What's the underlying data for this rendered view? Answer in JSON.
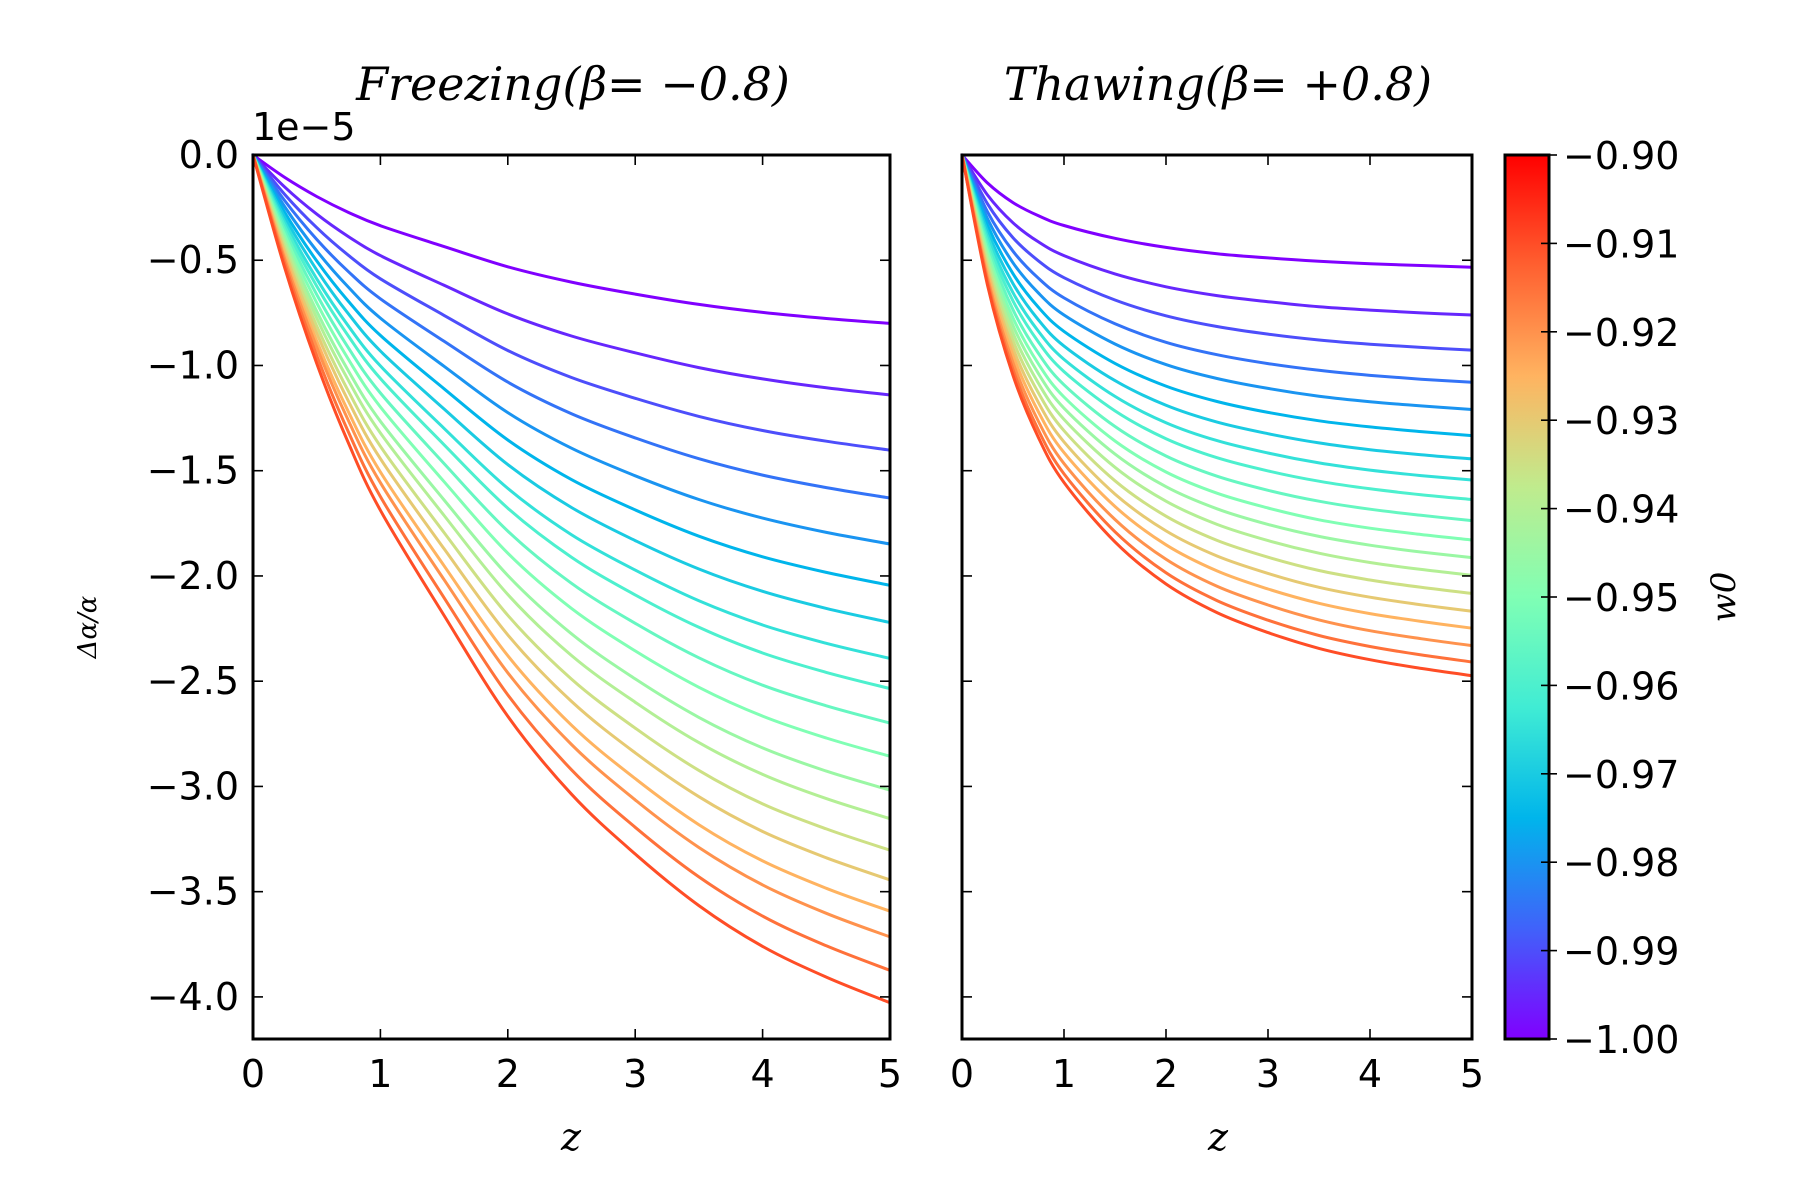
{
  "chart_data": [
    {
      "type": "line",
      "panel": "left",
      "title": "Freezing(β= −0.8)",
      "xlabel": "z",
      "ylabel": "Δα/α",
      "y_offset_text": "1e−5",
      "xlim": [
        0,
        5
      ],
      "ylim": [
        -4.2,
        0.0
      ],
      "xticks": [
        "0",
        "1",
        "2",
        "3",
        "4",
        "5"
      ],
      "yticks": [
        "0.0",
        "−0.5",
        "−1.0",
        "−1.5",
        "−2.0",
        "−2.5",
        "−3.0",
        "−3.5",
        "−4.0"
      ],
      "ytick_values": [
        0,
        -0.5,
        -1.0,
        -1.5,
        -2.0,
        -2.5,
        -3.0,
        -3.5,
        -4.0
      ],
      "x": [
        0,
        0.25,
        0.5,
        0.75,
        1.0,
        1.5,
        2.0,
        2.5,
        3.0,
        3.5,
        4.0,
        4.5,
        5.0
      ],
      "series": [
        {
          "w0": -1.0,
          "values": [
            0,
            -0.107,
            -0.197,
            -0.273,
            -0.336,
            -0.435,
            -0.531,
            -0.604,
            -0.661,
            -0.71,
            -0.748,
            -0.777,
            -0.8
          ]
        },
        {
          "w0": -0.995,
          "values": [
            0,
            -0.153,
            -0.281,
            -0.388,
            -0.478,
            -0.619,
            -0.755,
            -0.86,
            -0.94,
            -1.01,
            -1.064,
            -1.106,
            -1.14
          ]
        },
        {
          "w0": -0.99,
          "values": [
            0,
            -0.188,
            -0.345,
            -0.477,
            -0.588,
            -0.762,
            -0.929,
            -1.057,
            -1.156,
            -1.242,
            -1.309,
            -1.36,
            -1.402
          ]
        },
        {
          "w0": -0.985,
          "values": [
            0,
            -0.218,
            -0.401,
            -0.555,
            -0.683,
            -0.885,
            -1.079,
            -1.229,
            -1.344,
            -1.443,
            -1.521,
            -1.58,
            -1.63
          ]
        },
        {
          "w0": -0.98,
          "values": [
            0,
            -0.247,
            -0.455,
            -0.629,
            -0.775,
            -1.004,
            -1.224,
            -1.393,
            -1.524,
            -1.637,
            -1.725,
            -1.793,
            -1.848
          ]
        },
        {
          "w0": -0.975,
          "values": [
            0,
            -0.274,
            -0.503,
            -0.696,
            -0.857,
            -1.111,
            -1.354,
            -1.542,
            -1.686,
            -1.811,
            -1.909,
            -1.983,
            -2.045
          ]
        },
        {
          "w0": -0.97,
          "values": [
            0,
            -0.297,
            -0.546,
            -0.756,
            -0.931,
            -1.207,
            -1.471,
            -1.675,
            -1.832,
            -1.967,
            -2.073,
            -2.154,
            -2.221
          ]
        },
        {
          "w0": -0.965,
          "values": [
            0,
            -0.32,
            -0.588,
            -0.814,
            -1.002,
            -1.299,
            -1.584,
            -1.804,
            -1.972,
            -2.118,
            -2.233,
            -2.32,
            -2.392
          ]
        },
        {
          "w0": -0.96,
          "values": [
            0,
            -0.339,
            -0.623,
            -0.862,
            -1.062,
            -1.377,
            -1.678,
            -1.911,
            -2.09,
            -2.244,
            -2.366,
            -2.458,
            -2.535
          ]
        },
        {
          "w0": -0.955,
          "values": [
            0,
            -0.361,
            -0.663,
            -0.918,
            -1.131,
            -1.466,
            -1.787,
            -2.035,
            -2.225,
            -2.389,
            -2.519,
            -2.617,
            -2.699
          ]
        },
        {
          "w0": -0.95,
          "values": [
            0,
            -0.382,
            -0.702,
            -0.972,
            -1.197,
            -1.552,
            -1.892,
            -2.154,
            -2.356,
            -2.529,
            -2.666,
            -2.77,
            -2.857
          ]
        },
        {
          "w0": -0.945,
          "values": [
            0,
            -0.404,
            -0.742,
            -1.027,
            -1.265,
            -1.639,
            -1.998,
            -2.275,
            -2.489,
            -2.672,
            -2.817,
            -2.927,
            -3.018
          ]
        },
        {
          "w0": -0.94,
          "values": [
            0,
            -0.422,
            -0.775,
            -1.073,
            -1.321,
            -1.713,
            -2.088,
            -2.378,
            -2.6,
            -2.792,
            -2.943,
            -3.058,
            -3.153
          ]
        },
        {
          "w0": -0.935,
          "values": [
            0,
            -0.442,
            -0.812,
            -1.124,
            -1.384,
            -1.794,
            -2.187,
            -2.49,
            -2.723,
            -2.924,
            -3.083,
            -3.202,
            -3.303
          ]
        },
        {
          "w0": -0.93,
          "values": [
            0,
            -0.461,
            -0.846,
            -1.171,
            -1.443,
            -1.871,
            -2.28,
            -2.596,
            -2.84,
            -3.049,
            -3.214,
            -3.339,
            -3.444
          ]
        },
        {
          "w0": -0.925,
          "values": [
            0,
            -0.481,
            -0.883,
            -1.222,
            -1.506,
            -1.952,
            -2.379,
            -2.709,
            -2.963,
            -3.182,
            -3.354,
            -3.484,
            -3.593
          ]
        },
        {
          "w0": -0.92,
          "values": [
            0,
            -0.497,
            -0.913,
            -1.264,
            -1.557,
            -2.018,
            -2.46,
            -2.801,
            -3.064,
            -3.29,
            -3.468,
            -3.603,
            -3.715
          ]
        },
        {
          "w0": -0.915,
          "values": [
            0,
            -0.518,
            -0.952,
            -1.318,
            -1.623,
            -2.104,
            -2.565,
            -2.921,
            -3.194,
            -3.43,
            -3.616,
            -3.757,
            -3.874
          ]
        },
        {
          "w0": -0.91,
          "values": [
            0,
            -0.539,
            -0.99,
            -1.37,
            -1.688,
            -2.188,
            -2.667,
            -3.037,
            -3.321,
            -3.566,
            -3.76,
            -3.906,
            -4.028
          ]
        }
      ]
    },
    {
      "type": "line",
      "panel": "right",
      "title": "Thawing(β= +0.8)",
      "xlabel": "z",
      "xlim": [
        0,
        5
      ],
      "ylim": [
        -4.2,
        0.0
      ],
      "xticks": [
        "0",
        "1",
        "2",
        "3",
        "4",
        "5"
      ],
      "x": [
        0,
        0.25,
        0.5,
        0.75,
        1.0,
        1.5,
        2.0,
        2.5,
        3.0,
        3.5,
        4.0,
        4.5,
        5.0
      ],
      "series": [
        {
          "w0": -1.0,
          "values": [
            0,
            -0.133,
            -0.226,
            -0.289,
            -0.335,
            -0.396,
            -0.439,
            -0.469,
            -0.489,
            -0.505,
            -0.517,
            -0.525,
            -0.533
          ]
        },
        {
          "w0": -0.995,
          "values": [
            0,
            -0.19,
            -0.322,
            -0.413,
            -0.478,
            -0.565,
            -0.626,
            -0.668,
            -0.697,
            -0.721,
            -0.737,
            -0.75,
            -0.76
          ]
        },
        {
          "w0": -0.99,
          "values": [
            0,
            -0.232,
            -0.393,
            -0.503,
            -0.583,
            -0.689,
            -0.764,
            -0.815,
            -0.851,
            -0.879,
            -0.899,
            -0.914,
            -0.927
          ]
        },
        {
          "w0": -0.985,
          "values": [
            0,
            -0.27,
            -0.457,
            -0.586,
            -0.679,
            -0.802,
            -0.89,
            -0.949,
            -0.991,
            -1.023,
            -1.047,
            -1.065,
            -1.08
          ]
        },
        {
          "w0": -0.98,
          "values": [
            0,
            -0.302,
            -0.512,
            -0.656,
            -0.76,
            -0.898,
            -0.996,
            -1.062,
            -1.109,
            -1.146,
            -1.172,
            -1.192,
            -1.209
          ]
        },
        {
          "w0": -0.975,
          "values": [
            0,
            -0.333,
            -0.564,
            -0.724,
            -0.838,
            -0.99,
            -1.098,
            -1.171,
            -1.223,
            -1.263,
            -1.292,
            -1.314,
            -1.333
          ]
        },
        {
          "w0": -0.97,
          "values": [
            0,
            -0.361,
            -0.611,
            -0.784,
            -0.908,
            -1.072,
            -1.189,
            -1.269,
            -1.324,
            -1.368,
            -1.4,
            -1.424,
            -1.444
          ]
        },
        {
          "w0": -0.965,
          "values": [
            0,
            -0.386,
            -0.654,
            -0.838,
            -0.971,
            -1.147,
            -1.272,
            -1.357,
            -1.416,
            -1.463,
            -1.497,
            -1.523,
            -1.544
          ]
        },
        {
          "w0": -0.96,
          "values": [
            0,
            -0.409,
            -0.693,
            -0.889,
            -1.029,
            -1.216,
            -1.348,
            -1.438,
            -1.501,
            -1.55,
            -1.586,
            -1.614,
            -1.637
          ]
        },
        {
          "w0": -0.955,
          "values": [
            0,
            -0.434,
            -0.735,
            -0.943,
            -1.092,
            -1.29,
            -1.43,
            -1.526,
            -1.593,
            -1.645,
            -1.683,
            -1.712,
            -1.737
          ]
        },
        {
          "w0": -0.95,
          "values": [
            0,
            -0.457,
            -0.774,
            -0.993,
            -1.15,
            -1.359,
            -1.506,
            -1.607,
            -1.677,
            -1.733,
            -1.773,
            -1.803,
            -1.829
          ]
        },
        {
          "w0": -0.945,
          "values": [
            0,
            -0.478,
            -0.81,
            -1.039,
            -1.203,
            -1.421,
            -1.576,
            -1.681,
            -1.755,
            -1.812,
            -1.854,
            -1.886,
            -1.913
          ]
        },
        {
          "w0": -0.94,
          "values": [
            0,
            -0.499,
            -0.846,
            -1.085,
            -1.256,
            -1.484,
            -1.645,
            -1.755,
            -1.832,
            -1.892,
            -1.936,
            -1.969,
            -1.997
          ]
        },
        {
          "w0": -0.935,
          "values": [
            0,
            -0.521,
            -0.882,
            -1.131,
            -1.31,
            -1.548,
            -1.716,
            -1.831,
            -1.911,
            -1.974,
            -2.019,
            -2.054,
            -2.083
          ]
        },
        {
          "w0": -0.93,
          "values": [
            0,
            -0.542,
            -0.918,
            -1.177,
            -1.363,
            -1.611,
            -1.786,
            -1.905,
            -1.988,
            -2.054,
            -2.101,
            -2.137,
            -2.168
          ]
        },
        {
          "w0": -0.925,
          "values": [
            0,
            -0.562,
            -0.952,
            -1.221,
            -1.414,
            -1.67,
            -1.852,
            -1.976,
            -2.062,
            -2.13,
            -2.179,
            -2.216,
            -2.248
          ]
        },
        {
          "w0": -0.92,
          "values": [
            0,
            -0.583,
            -0.987,
            -1.266,
            -1.466,
            -1.732,
            -1.921,
            -2.049,
            -2.138,
            -2.209,
            -2.26,
            -2.298,
            -2.331
          ]
        },
        {
          "w0": -0.915,
          "values": [
            0,
            -0.602,
            -1.02,
            -1.308,
            -1.515,
            -1.79,
            -1.985,
            -2.117,
            -2.21,
            -2.283,
            -2.335,
            -2.375,
            -2.409
          ]
        },
        {
          "w0": -0.91,
          "values": [
            0,
            -0.618,
            -1.047,
            -1.343,
            -1.556,
            -1.838,
            -2.038,
            -2.174,
            -2.269,
            -2.344,
            -2.398,
            -2.439,
            -2.474
          ]
        }
      ]
    }
  ],
  "colorbar": {
    "label": "w0",
    "colormap": "rainbow",
    "range": [
      -1.0,
      -0.9
    ],
    "ticks": [
      "−0.90",
      "−0.91",
      "−0.92",
      "−0.93",
      "−0.94",
      "−0.95",
      "−0.96",
      "−0.97",
      "−0.98",
      "−0.99",
      "−1.00"
    ],
    "tick_values": [
      -0.9,
      -0.91,
      -0.92,
      -0.93,
      -0.94,
      -0.95,
      -0.96,
      -0.97,
      -0.98,
      -0.99,
      -1.0
    ],
    "colors": [
      "#8000ff",
      "#4062fa",
      "#00b5eb",
      "#40ecd4",
      "#80ffb4",
      "#c0eb8d",
      "#ffb360",
      "#ff6030",
      "#ff0000"
    ]
  }
}
